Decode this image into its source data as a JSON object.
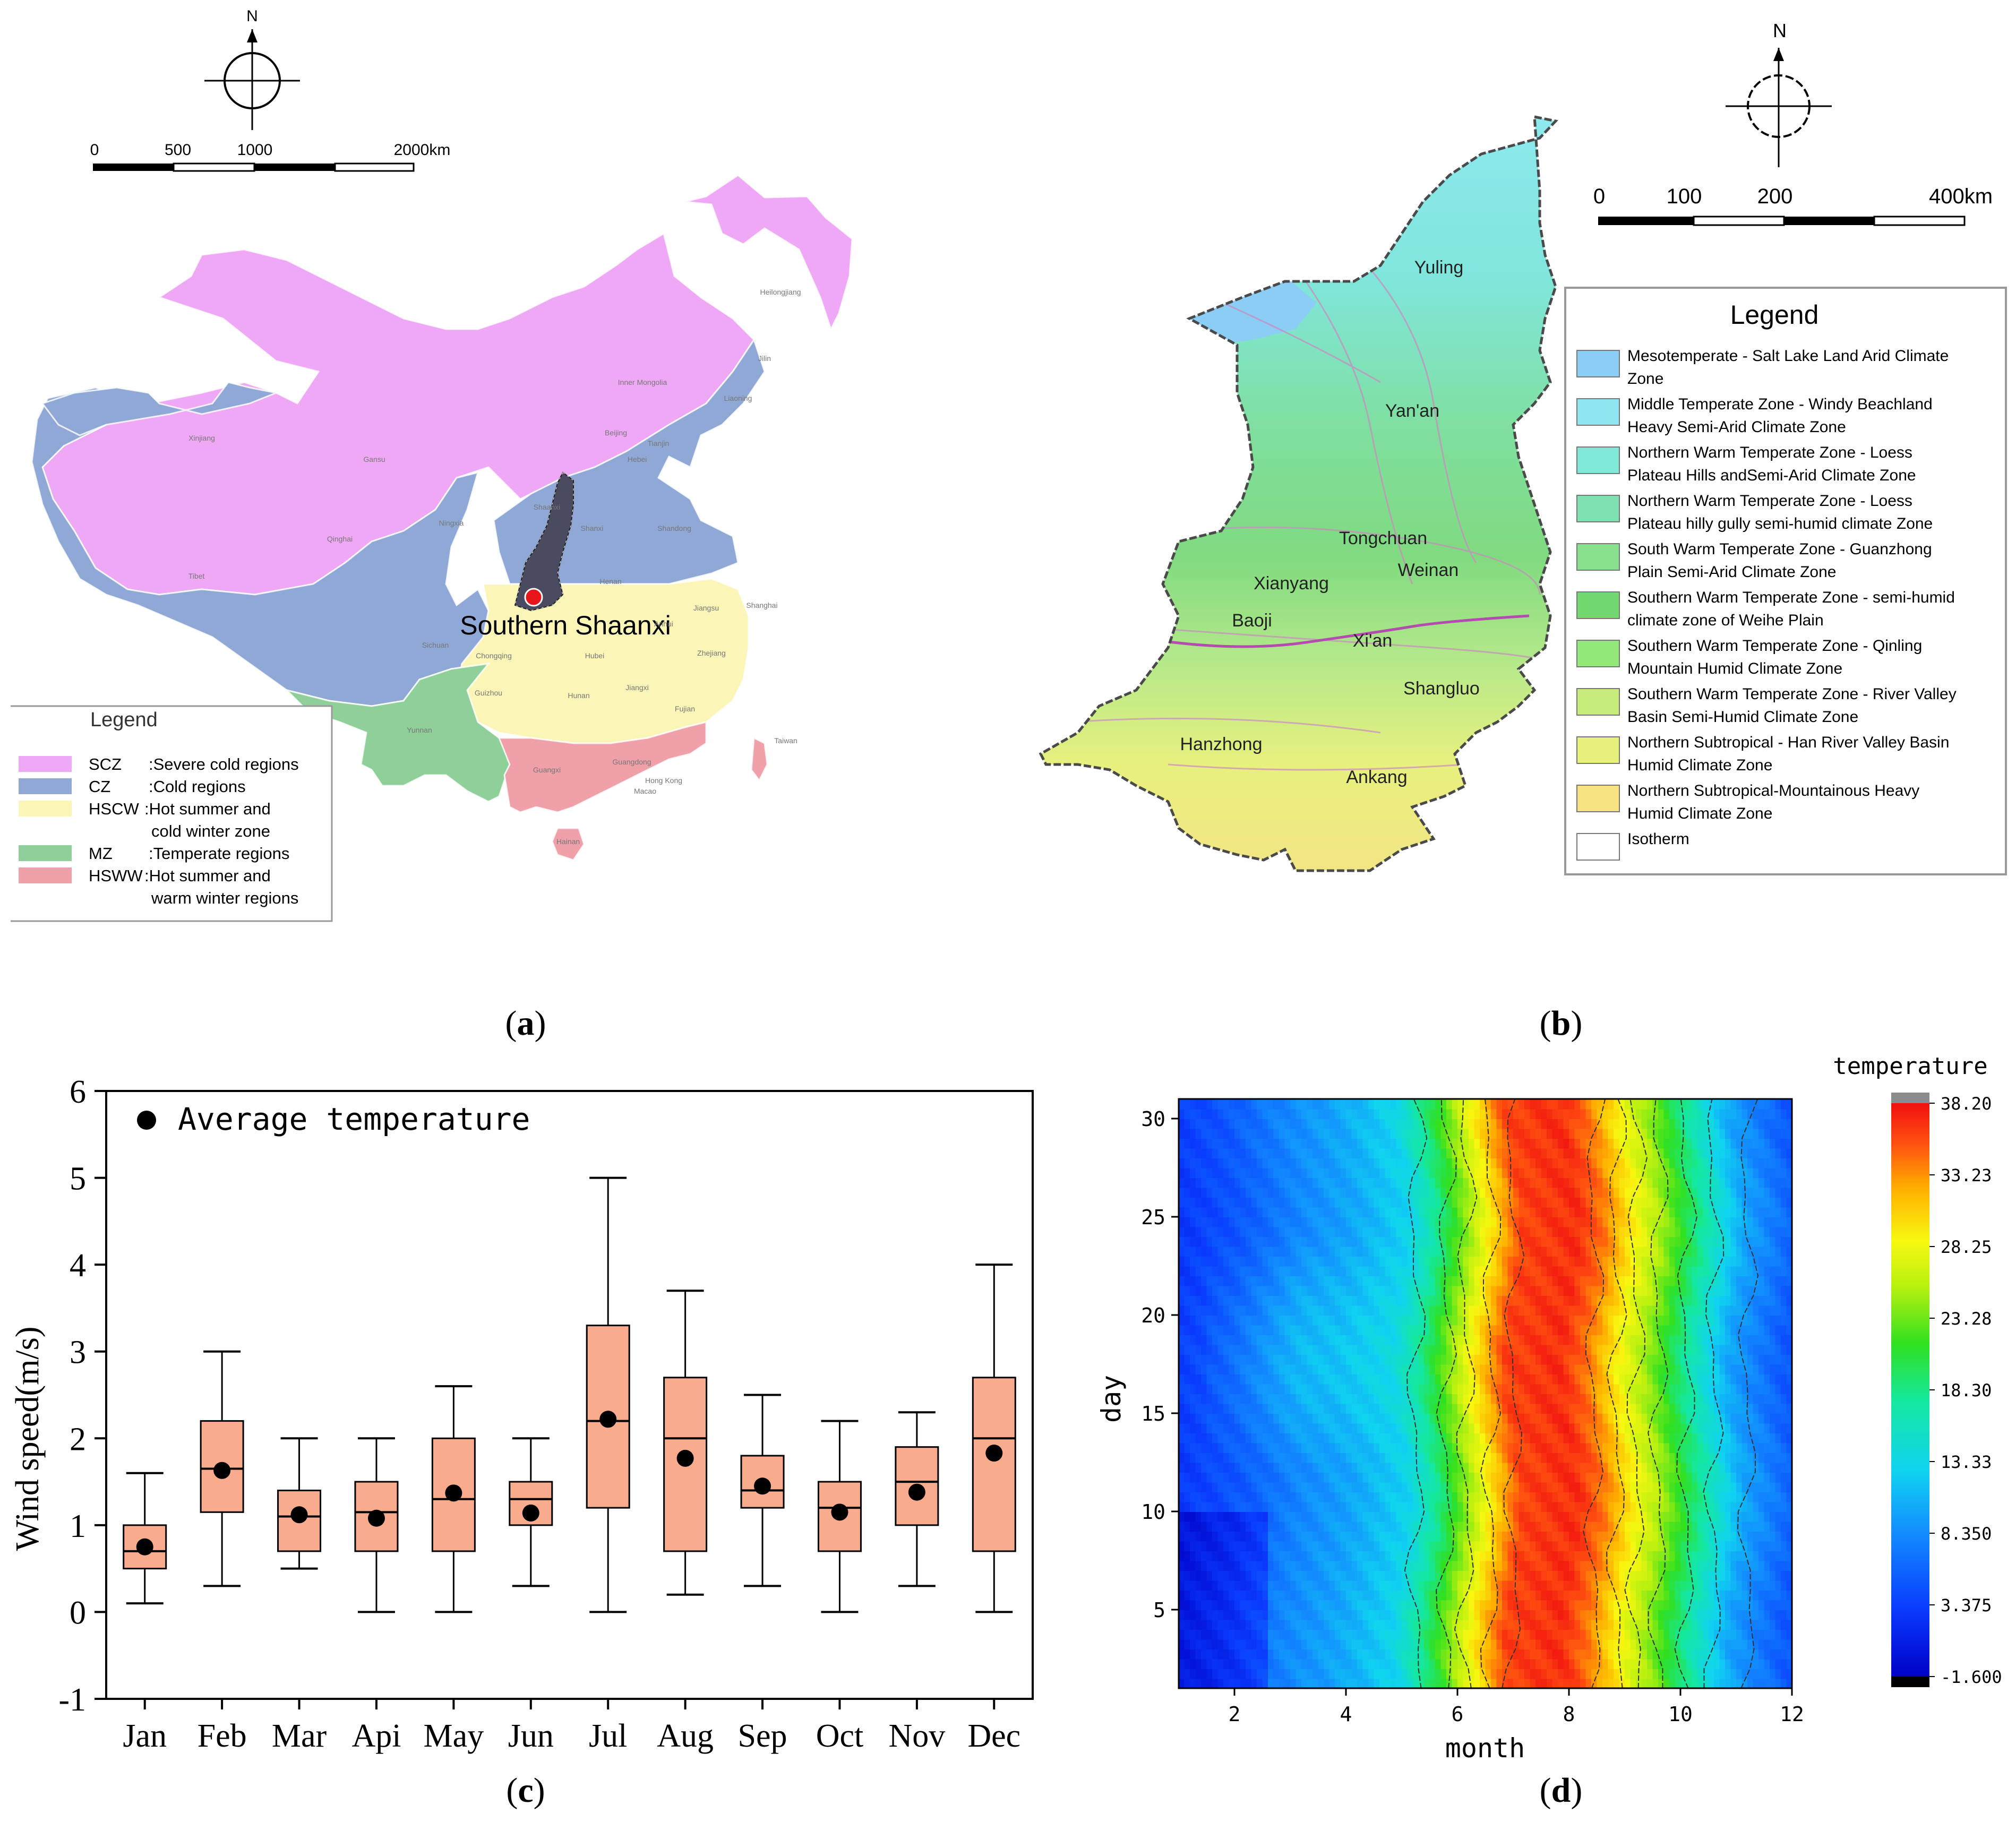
{
  "panel_a": {
    "label": "a",
    "north": "N",
    "scale_labels": [
      "0",
      "500",
      "1000",
      "2000km"
    ],
    "highlight_label": "Southern Shaanxi",
    "province_labels": [
      "Heilongjiang",
      "Jilin",
      "Liaoning",
      "Inner Mongolia",
      "Xinjiang",
      "Gansu",
      "Ningxia",
      "Qinghai",
      "Tibet",
      "Sichuan",
      "Yunnan",
      "Guizhou",
      "Chongqing",
      "Hubei",
      "Hunan",
      "Jiangxi",
      "Anhui",
      "Jiangsu",
      "Zhejiang",
      "Fujian",
      "Guangdong",
      "Guangxi",
      "Hainan",
      "Henan",
      "Shandong",
      "Hebei",
      "Beijing",
      "Tianjin",
      "Shanxi",
      "Shaanxi",
      "Shanghai",
      "Taiwan",
      "Hong Kong",
      "Macao"
    ],
    "legend_title": "Legend",
    "legend": [
      {
        "code": "SCZ",
        "desc": ":Severe cold regions",
        "desc2": "",
        "color": "#efa8f5"
      },
      {
        "code": "CZ",
        "desc": ":Cold regions",
        "desc2": "",
        "color": "#8fa8d6"
      },
      {
        "code": "HSCW",
        "desc": ":Hot summer and",
        "desc2": "cold winter zone",
        "color": "#fbf6b8"
      },
      {
        "code": "MZ",
        "desc": ":Temperate regions",
        "desc2": "",
        "color": "#8fcf9a"
      },
      {
        "code": "HSWW",
        "desc": ":Hot summer and",
        "desc2": "warm winter regions",
        "color": "#efa0a8"
      }
    ]
  },
  "panel_b": {
    "label": "b",
    "north": "N",
    "scale_labels": [
      "0",
      "100",
      "200",
      "400km"
    ],
    "cities": [
      "Yuling",
      "Yan'an",
      "Tongchuan",
      "Weinan",
      "Xianyang",
      "Baoji",
      "Xi'an",
      "Shangluo",
      "Hanzhong",
      "Ankang"
    ],
    "legend_title": "Legend",
    "legend": [
      {
        "line1": "Mesotemperate - Salt Lake Land Arid Climate",
        "line2": "Zone",
        "color": "#8ccdf5"
      },
      {
        "line1": "Middle Temperate Zone - Windy Beachland",
        "line2": "Heavy Semi-Arid Climate Zone",
        "color": "#8fe6f0"
      },
      {
        "line1": "Northern Warm Temperate Zone - Loess",
        "line2": "Plateau Hills andSemi-Arid Climate Zone",
        "color": "#7fe8d6"
      },
      {
        "line1": "Northern Warm Temperate Zone - Loess",
        "line2": "Plateau hilly gully semi-humid climate Zone",
        "color": "#7fe0b0"
      },
      {
        "line1": "South Warm Temperate Zone - Guanzhong",
        "line2": "Plain Semi-Arid Climate Zone",
        "color": "#86e08c"
      },
      {
        "line1": "Southern Warm Temperate Zone - semi-humid",
        "line2": "climate zone of Weihe Plain",
        "color": "#72d86f"
      },
      {
        "line1": "Southern Warm Temperate Zone - Qinling",
        "line2": "Mountain Humid Climate Zone",
        "color": "#93e87a"
      },
      {
        "line1": "Southern Warm Temperate Zone - River Valley",
        "line2": "Basin Semi-Humid Climate Zone",
        "color": "#c7ec7c"
      },
      {
        "line1": "Northern Subtropical - Han River Valley Basin",
        "line2": "Humid Climate Zone",
        "color": "#e8f27a"
      },
      {
        "line1": "Northern Subtropical-Mountainous Heavy",
        "line2": "Humid Climate Zone",
        "color": "#f6e27e"
      },
      {
        "line1": "Isotherm",
        "line2": "",
        "color": "#ffffff"
      }
    ]
  },
  "chart_data": [
    {
      "type": "box",
      "panel": "c",
      "title": "",
      "xlabel": "",
      "ylabel": "Wind speed(m/s)",
      "ylim": [
        -1,
        6
      ],
      "yticks": [
        -1,
        0,
        1,
        2,
        3,
        4,
        5,
        6
      ],
      "legend": "Average temperature",
      "categories": [
        "Jan",
        "Feb",
        "Mar",
        "Api",
        "May",
        "Jun",
        "Jul",
        "Aug",
        "Sep",
        "Oct",
        "Nov",
        "Dec"
      ],
      "whisker_low": [
        0.1,
        0.3,
        0.5,
        0.0,
        0.0,
        0.3,
        0.0,
        0.2,
        0.3,
        0.0,
        0.3,
        0.0
      ],
      "q1": [
        0.5,
        1.15,
        0.7,
        0.7,
        0.7,
        1.0,
        1.2,
        0.7,
        1.2,
        0.7,
        1.0,
        0.7
      ],
      "median": [
        0.7,
        1.65,
        1.1,
        1.15,
        1.3,
        1.3,
        2.2,
        2.0,
        1.4,
        1.2,
        1.5,
        2.0
      ],
      "q3": [
        1.0,
        2.2,
        1.4,
        1.5,
        2.0,
        1.5,
        3.3,
        2.7,
        1.8,
        1.5,
        1.9,
        2.7
      ],
      "whisker_high": [
        1.6,
        3.0,
        2.0,
        2.0,
        2.6,
        2.0,
        5.0,
        3.7,
        2.5,
        2.2,
        2.3,
        4.0
      ],
      "mean": [
        0.75,
        1.63,
        1.12,
        1.08,
        1.37,
        1.14,
        2.22,
        1.77,
        1.45,
        1.15,
        1.38,
        1.83
      ],
      "box_color": "#f9ab8e"
    },
    {
      "type": "heatmap",
      "panel": "d",
      "xlabel": "month",
      "ylabel": "day",
      "xlim": [
        1,
        12
      ],
      "ylim": [
        1,
        31
      ],
      "xticks": [
        2,
        4,
        6,
        8,
        10,
        12
      ],
      "yticks": [
        5,
        10,
        15,
        20,
        25,
        30
      ],
      "colorbar_title": "temperature",
      "colorbar_ticks": [
        "38.20",
        "33.23",
        "28.25",
        "23.28",
        "18.30",
        "13.33",
        "8.350",
        "3.375",
        "-1.600"
      ],
      "colorbar_range": [
        -1.6,
        38.2
      ],
      "month_profile": [
        {
          "month": 1,
          "value": 3
        },
        {
          "month": 2,
          "value": 5
        },
        {
          "month": 3,
          "value": 8
        },
        {
          "month": 4,
          "value": 10
        },
        {
          "month": 5,
          "value": 13
        },
        {
          "month": 5.5,
          "value": 18
        },
        {
          "month": 6,
          "value": 24
        },
        {
          "month": 6.5,
          "value": 30
        },
        {
          "month": 7,
          "value": 36
        },
        {
          "month": 8,
          "value": 37
        },
        {
          "month": 8.5,
          "value": 34
        },
        {
          "month": 9,
          "value": 29
        },
        {
          "month": 9.5,
          "value": 25
        },
        {
          "month": 10,
          "value": 20
        },
        {
          "month": 10.5,
          "value": 15
        },
        {
          "month": 11,
          "value": 10
        },
        {
          "month": 12,
          "value": 5
        }
      ]
    }
  ],
  "panel_labels": {
    "c": "c",
    "d": "d"
  }
}
